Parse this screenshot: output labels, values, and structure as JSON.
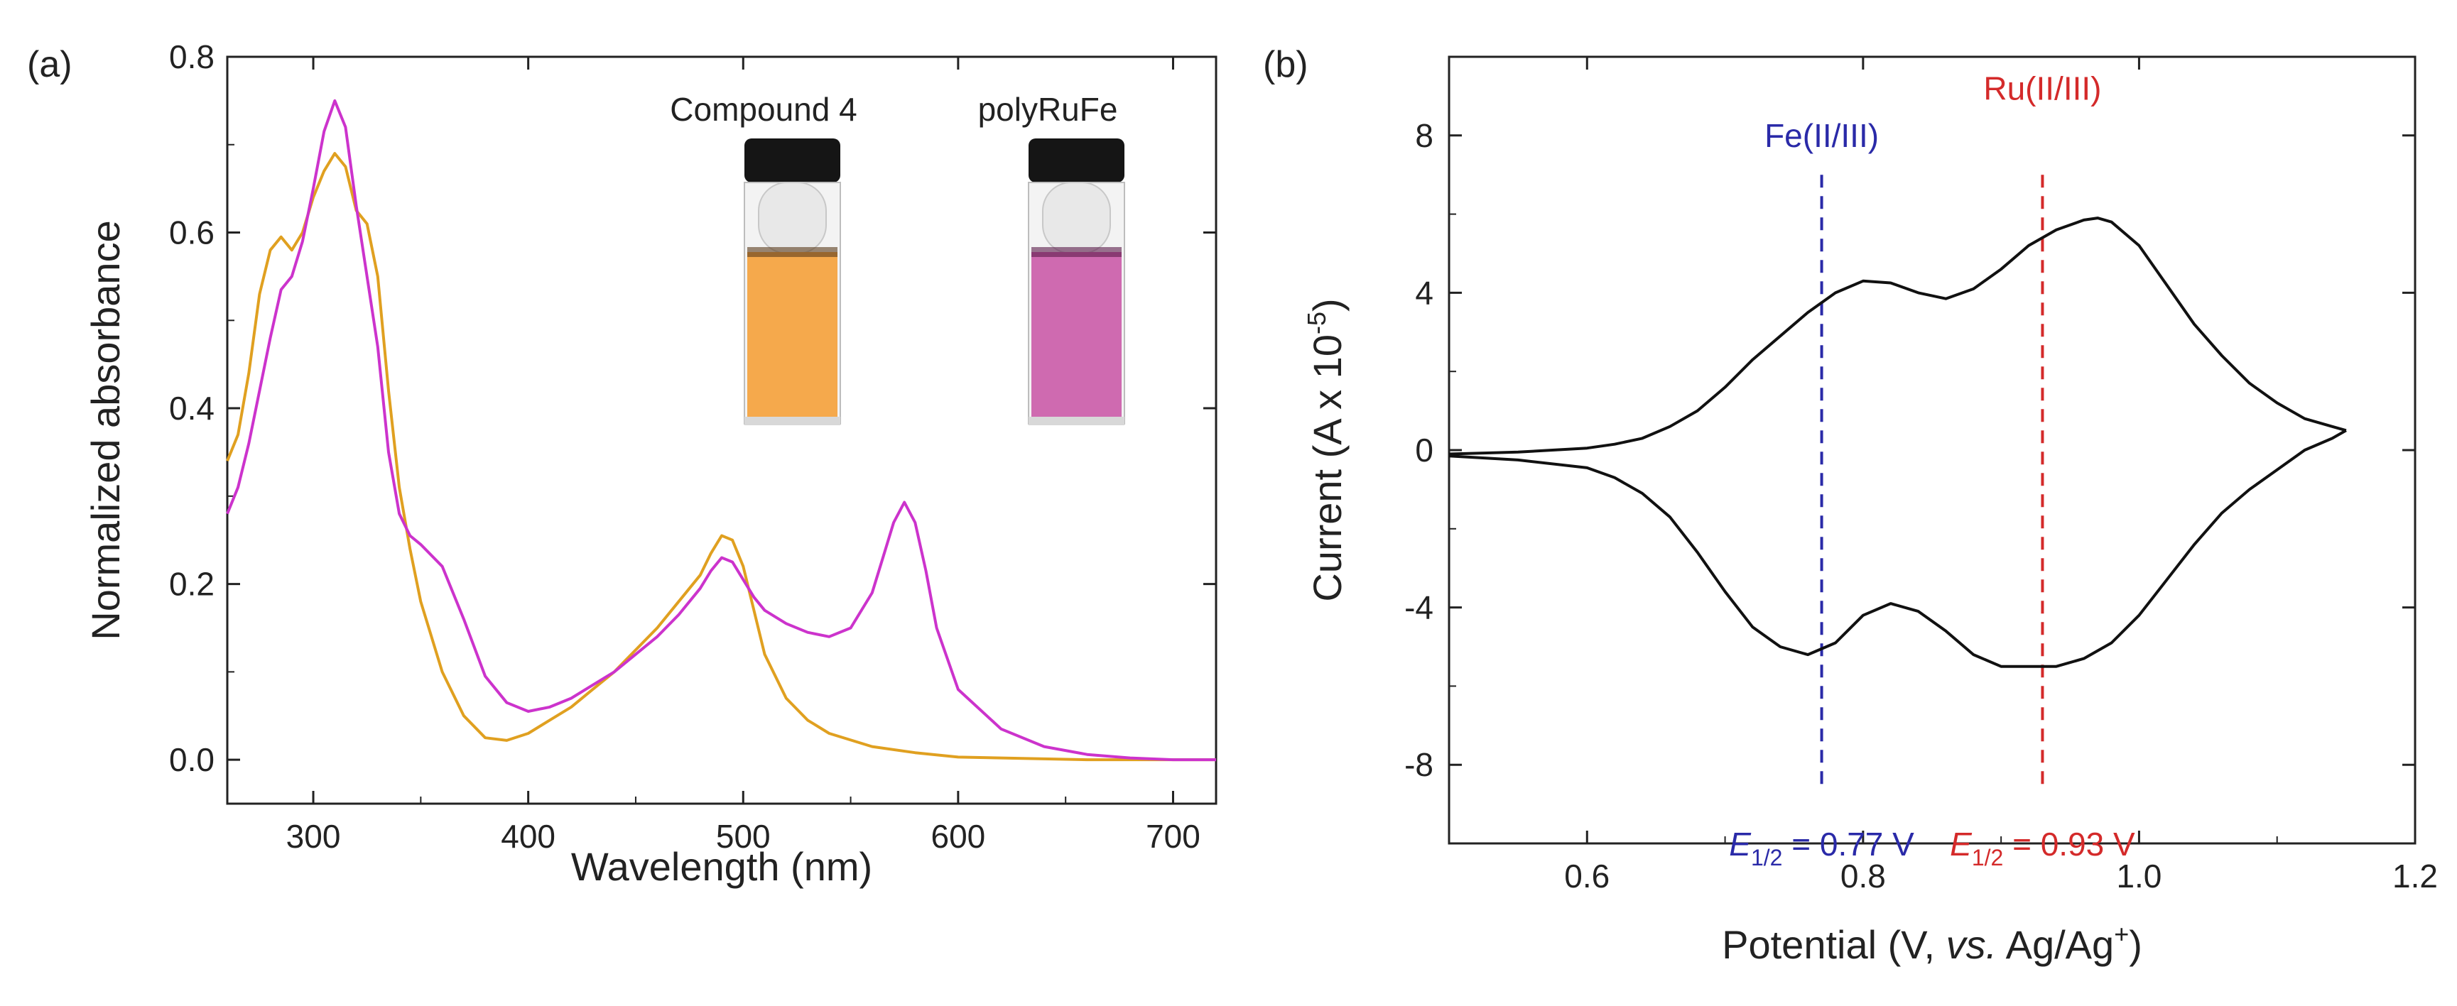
{
  "panels": {
    "a": {
      "letter": "(a)"
    },
    "b": {
      "letter": "(b)"
    }
  },
  "chart_data": [
    {
      "type": "line",
      "panel": "(a)",
      "title": "",
      "xlabel": "Wavelength (nm)",
      "ylabel": "Normalized absorbance",
      "xlim": [
        260,
        720
      ],
      "ylim": [
        -0.05,
        0.8
      ],
      "xticks": [
        300,
        400,
        500,
        600,
        700
      ],
      "yticks": [
        0.0,
        0.2,
        0.4,
        0.6,
        0.8
      ],
      "ytick_labels": [
        "0.0",
        "0.2",
        "0.4",
        "0.6",
        "0.8"
      ],
      "grid": false,
      "inset_labels": [
        "Compound 4",
        "polyRuFe"
      ],
      "inset_vial_colors": [
        "#f5a94c",
        "#cf6ab0"
      ],
      "series": [
        {
          "color": "#e0a020",
          "x": [
            260,
            265,
            270,
            275,
            280,
            285,
            290,
            295,
            300,
            305,
            310,
            315,
            320,
            325,
            330,
            335,
            340,
            345,
            350,
            360,
            370,
            380,
            390,
            400,
            410,
            420,
            430,
            440,
            450,
            460,
            470,
            480,
            485,
            490,
            495,
            500,
            505,
            510,
            520,
            530,
            540,
            560,
            580,
            600,
            620,
            640,
            660,
            680,
            700,
            720
          ],
          "y": [
            0.34,
            0.37,
            0.44,
            0.53,
            0.58,
            0.595,
            0.58,
            0.6,
            0.64,
            0.67,
            0.69,
            0.675,
            0.625,
            0.61,
            0.55,
            0.42,
            0.31,
            0.24,
            0.18,
            0.1,
            0.05,
            0.025,
            0.022,
            0.03,
            0.045,
            0.06,
            0.08,
            0.1,
            0.125,
            0.15,
            0.18,
            0.21,
            0.235,
            0.255,
            0.25,
            0.22,
            0.17,
            0.12,
            0.07,
            0.045,
            0.03,
            0.015,
            0.008,
            0.003,
            0.002,
            0.001,
            0.0,
            0.0,
            0.0,
            0.0
          ]
        },
        {
          "color": "#cc33cc",
          "x": [
            260,
            265,
            270,
            275,
            280,
            285,
            290,
            295,
            300,
            305,
            310,
            315,
            320,
            325,
            330,
            335,
            340,
            345,
            350,
            360,
            370,
            380,
            390,
            400,
            410,
            420,
            430,
            440,
            450,
            460,
            470,
            480,
            485,
            490,
            495,
            500,
            505,
            510,
            520,
            530,
            540,
            550,
            560,
            565,
            570,
            575,
            580,
            585,
            590,
            600,
            620,
            640,
            660,
            680,
            700,
            720
          ],
          "y": [
            0.28,
            0.31,
            0.36,
            0.42,
            0.48,
            0.535,
            0.55,
            0.59,
            0.65,
            0.715,
            0.75,
            0.72,
            0.63,
            0.55,
            0.47,
            0.35,
            0.28,
            0.255,
            0.245,
            0.22,
            0.16,
            0.095,
            0.065,
            0.055,
            0.06,
            0.07,
            0.085,
            0.1,
            0.12,
            0.14,
            0.165,
            0.195,
            0.215,
            0.23,
            0.225,
            0.205,
            0.185,
            0.17,
            0.155,
            0.145,
            0.14,
            0.15,
            0.19,
            0.23,
            0.27,
            0.293,
            0.27,
            0.215,
            0.15,
            0.08,
            0.035,
            0.015,
            0.006,
            0.002,
            0.0,
            0.0
          ]
        }
      ]
    },
    {
      "type": "line",
      "panel": "(b)",
      "title": "",
      "xlabel_parts": [
        "Potential (V, ",
        "vs.",
        " Ag/Ag",
        "+",
        ")"
      ],
      "ylabel_parts": [
        "Current (A x 10",
        "-5",
        ")"
      ],
      "xlim": [
        0.5,
        1.2
      ],
      "ylim": [
        -10,
        10
      ],
      "xticks": [
        0.6,
        0.8,
        1.0,
        1.2
      ],
      "xtick_labels": [
        "0.6",
        "0.8",
        "1.0",
        "1.2"
      ],
      "yticks": [
        -8,
        -4,
        0,
        4,
        8
      ],
      "ytick_labels": [
        "-8",
        "-4",
        "0",
        "4",
        "8"
      ],
      "grid": false,
      "markers": [
        {
          "x": 0.77,
          "color": "#2a2aa8",
          "top_label": "Fe(II/III)",
          "e_symbol": "E",
          "e_sub": "1/2",
          "e_value": " = 0.77 V"
        },
        {
          "x": 0.93,
          "color": "#d42a2a",
          "top_label": "Ru(II/III)",
          "e_symbol": "E",
          "e_sub": "1/2",
          "e_value": " = 0.93 V"
        }
      ],
      "series": [
        {
          "color": "#111111",
          "x": [
            0.5,
            0.55,
            0.6,
            0.62,
            0.64,
            0.66,
            0.68,
            0.7,
            0.72,
            0.74,
            0.76,
            0.78,
            0.8,
            0.82,
            0.84,
            0.86,
            0.88,
            0.9,
            0.92,
            0.94,
            0.96,
            0.97,
            0.98,
            1.0,
            1.02,
            1.04,
            1.06,
            1.08,
            1.1,
            1.12,
            1.14,
            1.15
          ],
          "y": [
            -0.1,
            -0.05,
            0.05,
            0.15,
            0.3,
            0.6,
            1.0,
            1.6,
            2.3,
            2.9,
            3.5,
            4.0,
            4.3,
            4.25,
            4.0,
            3.85,
            4.1,
            4.6,
            5.2,
            5.6,
            5.85,
            5.9,
            5.8,
            5.2,
            4.2,
            3.2,
            2.4,
            1.7,
            1.2,
            0.8,
            0.6,
            0.5
          ]
        },
        {
          "color": "#111111",
          "x": [
            1.15,
            1.14,
            1.12,
            1.1,
            1.08,
            1.06,
            1.04,
            1.02,
            1.0,
            0.98,
            0.96,
            0.94,
            0.92,
            0.9,
            0.88,
            0.86,
            0.84,
            0.82,
            0.8,
            0.78,
            0.76,
            0.74,
            0.72,
            0.7,
            0.68,
            0.66,
            0.64,
            0.62,
            0.6,
            0.55,
            0.5
          ],
          "y": [
            0.5,
            0.3,
            0.0,
            -0.5,
            -1.0,
            -1.6,
            -2.4,
            -3.3,
            -4.2,
            -4.9,
            -5.3,
            -5.5,
            -5.5,
            -5.5,
            -5.2,
            -4.6,
            -4.1,
            -3.9,
            -4.2,
            -4.9,
            -5.2,
            -5.0,
            -4.5,
            -3.6,
            -2.6,
            -1.7,
            -1.1,
            -0.7,
            -0.45,
            -0.25,
            -0.15
          ]
        }
      ]
    }
  ]
}
